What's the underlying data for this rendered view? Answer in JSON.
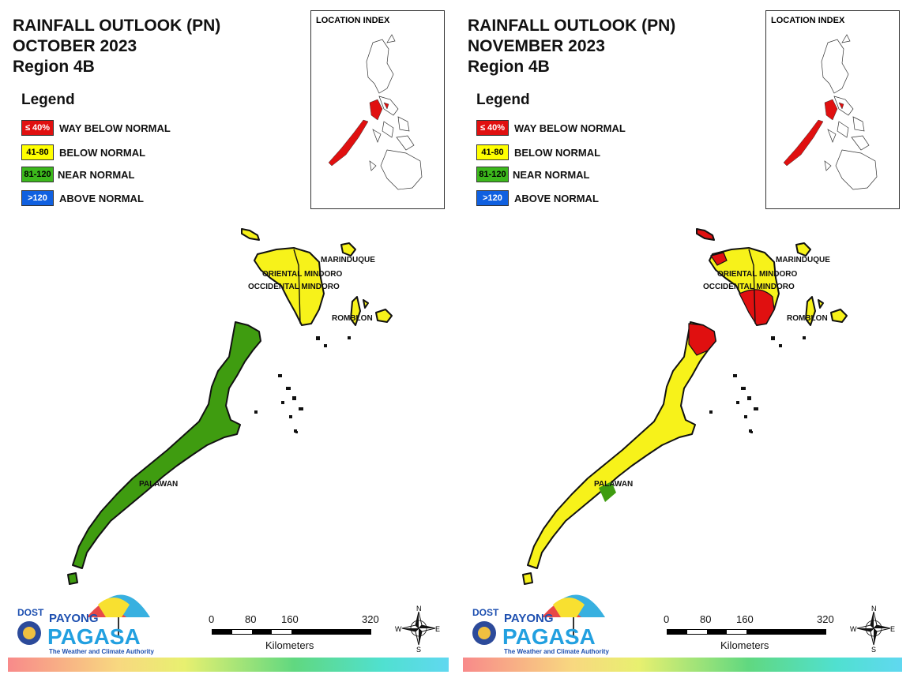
{
  "panels": [
    {
      "title_line1": "RAINFALL OUTLOOK (PN)",
      "title_line2": "OCTOBER 2023",
      "title_line3": "Region 4B",
      "legend_title": "Legend",
      "inset_title": "LOCATION INDEX",
      "regions": {
        "mindoro": "yellow",
        "palawan": "green",
        "marinduque": "yellow",
        "romblon": "yellow"
      }
    },
    {
      "title_line1": "RAINFALL OUTLOOK (PN)",
      "title_line2": "NOVEMBER 2023",
      "title_line3": "Region 4B",
      "legend_title": "Legend",
      "inset_title": "LOCATION INDEX",
      "regions": {
        "mindoro": "yellow",
        "palawan": "yellow",
        "marinduque": "yellow",
        "romblon": "yellow"
      }
    }
  ],
  "legend": [
    {
      "range": "≤ 40%",
      "label": "WAY BELOW NORMAL",
      "color": "#e01010",
      "text_color": "#ffffff"
    },
    {
      "range": "41-80",
      "label": "BELOW NORMAL",
      "color": "#ffff00",
      "text_color": "#000000"
    },
    {
      "range": "81-120",
      "label": "NEAR NORMAL",
      "color": "#3cb81c",
      "text_color": "#000000"
    },
    {
      "range": ">120",
      "label": "ABOVE NORMAL",
      "color": "#1060e0",
      "text_color": "#ffffff"
    }
  ],
  "map_labels": {
    "marinduque": "MARINDUQUE",
    "oriental_mindoro": "ORIENTAL MINDORO",
    "occidental_mindoro": "OCCIDENTAL MINDORO",
    "romblon": "ROMBLON",
    "palawan": "PALAWAN"
  },
  "logo": {
    "dost": "DOST",
    "payong": "PAYONG",
    "pagasa": "PAGASA",
    "tagline": "The Weather and Climate Authority"
  },
  "scale_bar": {
    "ticks": [
      "0",
      "80",
      "160",
      "320"
    ],
    "unit": "Kilometers"
  },
  "compass": {
    "n": "N",
    "s": "S",
    "e": "E",
    "w": "W"
  },
  "colors": {
    "yellow": "#f7f21a",
    "green": "#3f9c10",
    "red": "#e01010"
  }
}
